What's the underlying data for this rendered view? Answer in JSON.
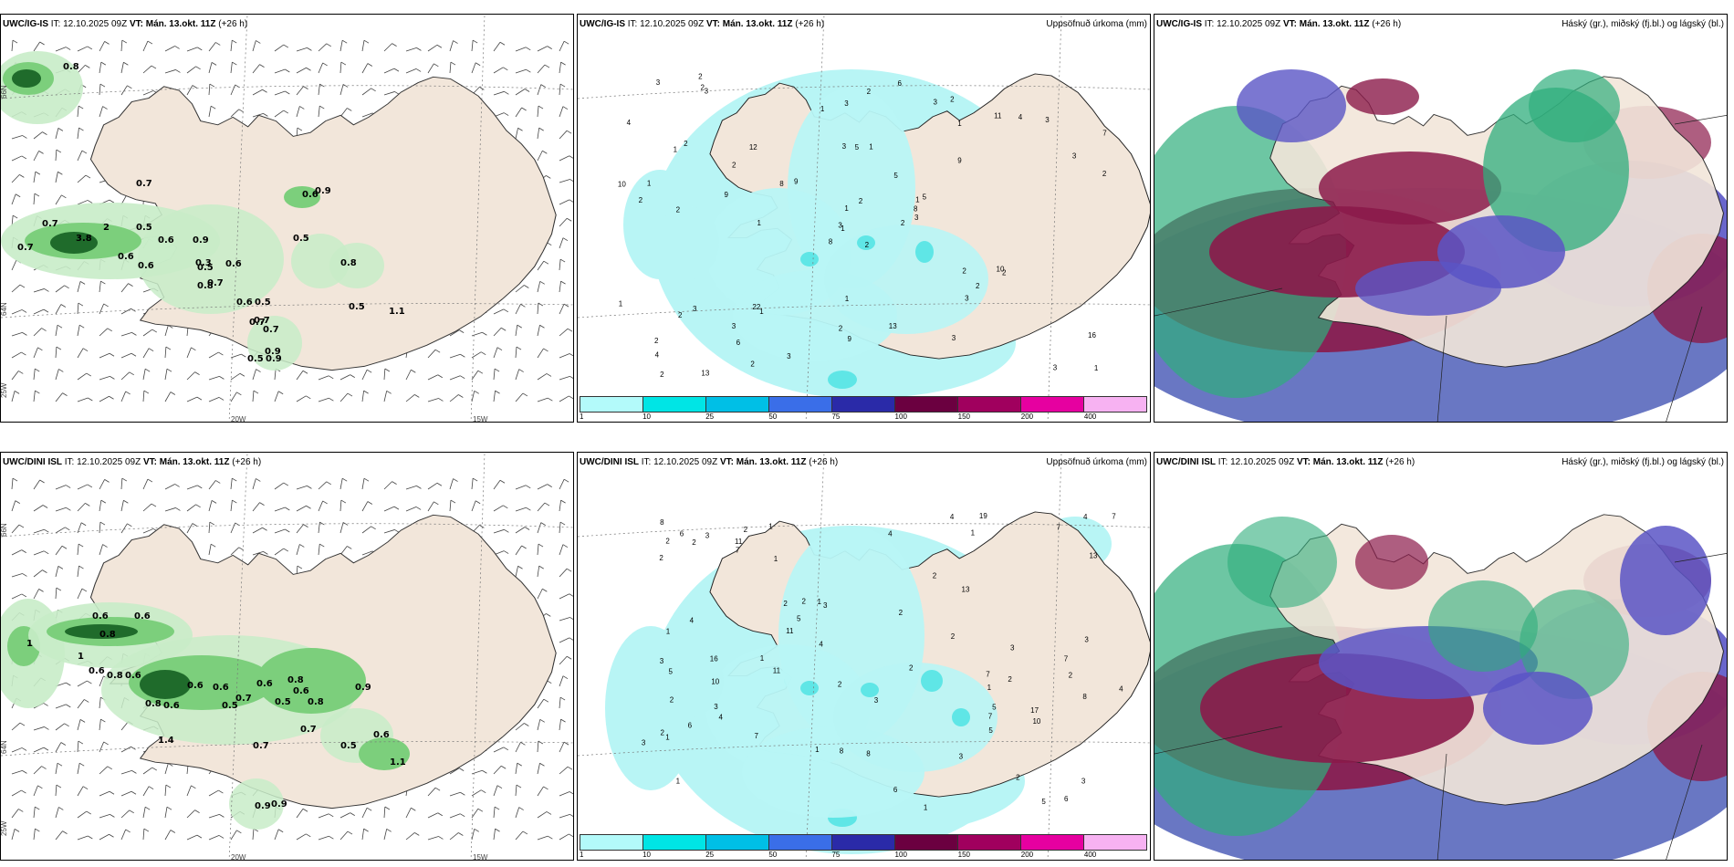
{
  "panels": [
    {
      "model": "UWC/IG-IS",
      "it_label": "IT:",
      "it_value": "12.10.2025 09Z",
      "vt_label": "VT:",
      "vt_value": "Mán. 13.okt. 11Z",
      "lead": "(+26 h)",
      "right_title": ""
    },
    {
      "model": "UWC/IG-IS",
      "it_label": "IT:",
      "it_value": "12.10.2025 09Z",
      "vt_label": "VT:",
      "vt_value": "Mán. 13.okt. 11Z",
      "lead": "(+26 h)",
      "right_title": "Uppsöfnuð úrkoma (mm)"
    },
    {
      "model": "UWC/IG-IS",
      "it_label": "IT:",
      "it_value": "12.10.2025 09Z",
      "vt_label": "VT:",
      "vt_value": "Mán. 13.okt. 11Z",
      "lead": "(+26 h)",
      "right_title": "Háský (gr.), miðský (fj.bl.) og lágský (bl.)"
    },
    {
      "model": "UWC/DINI ISL",
      "it_label": "IT:",
      "it_value": "12.10.2025 09Z",
      "vt_label": "VT:",
      "vt_value": "Mán. 13.okt. 11Z",
      "lead": "(+26 h)",
      "right_title": ""
    },
    {
      "model": "UWC/DINI ISL",
      "it_label": "IT:",
      "it_value": "12.10.2025 09Z",
      "vt_label": "VT:",
      "vt_value": "Mán. 13.okt. 11Z",
      "lead": "(+26 h)",
      "right_title": "Uppsöfnuð úrkoma (mm)"
    },
    {
      "model": "UWC/DINI ISL",
      "it_label": "IT:",
      "it_value": "12.10.2025 09Z",
      "vt_label": "VT:",
      "vt_value": "Mán. 13.okt. 11Z",
      "lead": "(+26 h)",
      "right_title": "Háský (gr.), miðský (fj.bl.) og lágský (bl.)"
    }
  ],
  "axis_labels": {
    "lat_66": "66N",
    "lat_64": "64N",
    "lon_25": "25W",
    "lon_20": "20W",
    "lon_15": "15W"
  },
  "colorbar": {
    "colors": [
      "#b3fafa",
      "#00e5e5",
      "#00bfe6",
      "#3a6ee8",
      "#2a2aa8",
      "#6b0040",
      "#a0005e",
      "#e600a0",
      "#f7b2f2"
    ],
    "ticks": [
      "1",
      "10",
      "25",
      "50",
      "75",
      "100",
      "150",
      "200",
      "400"
    ]
  },
  "colors": {
    "land": "#f2e6da",
    "precip_light": "#b8f5f5",
    "precip_mid": "#5fe6e6",
    "green_light": "#c8ecc8",
    "green_mid": "#7ccf7c",
    "green_dark": "#1f6b2b",
    "cloud_high": "#2fae7c",
    "cloud_mid": "#8b1a4a",
    "cloud_low": "#5a55c6",
    "ocean_cloud": "#4f5fb8"
  },
  "labels": {
    "windmax_top": [
      "0.8",
      "0.7",
      "0.7",
      "0.7",
      "3.8",
      "2",
      "0.5",
      "0.6",
      "0.9",
      "0.8",
      "0.6",
      "0.6",
      "0.5",
      "0.3",
      "0.6",
      "0.7",
      "0.5",
      "0.5",
      "0.6",
      "0.9",
      "0.8",
      "0.5",
      "0.6",
      "0.7",
      "0.5",
      "0.9",
      "0.9",
      "0.7",
      "0.7",
      "1.1"
    ],
    "windmax_bottom": [
      "1",
      "0.6",
      "0.8",
      "0.6",
      "1",
      "0.6",
      "0.8",
      "0.6",
      "0.8",
      "0.6",
      "0.6",
      "0.6",
      "0.5",
      "0.7",
      "0.6",
      "0.8",
      "0.8",
      "0.9",
      "0.6",
      "0.5",
      "0.7",
      "0.5",
      "0.6",
      "0.7",
      "0.9",
      "0.9",
      "1.1",
      "1.4"
    ],
    "precip_top": [
      "2",
      "1",
      "1",
      "2",
      "1",
      "1",
      "2",
      "1",
      "1",
      "2",
      "3",
      "1",
      "2",
      "7",
      "8",
      "9",
      "13",
      "3",
      "5",
      "3",
      "9",
      "4",
      "6",
      "5",
      "5",
      "2",
      "2",
      "3",
      "2",
      "2",
      "2",
      "3",
      "2",
      "1",
      "12",
      "11",
      "22",
      "3",
      "16",
      "10",
      "6",
      "8",
      "9",
      "3",
      "2",
      "10",
      "8",
      "2",
      "9",
      "3",
      "2",
      "3",
      "4",
      "2",
      "3",
      "3",
      "2",
      "3",
      "13",
      "3",
      "2",
      "1",
      "1",
      "2",
      "4",
      "2",
      "3",
      "1",
      "2",
      "1",
      "1",
      "3"
    ],
    "precip_bottom": [
      "1",
      "2",
      "1",
      "2",
      "3",
      "2",
      "1",
      "1",
      "2",
      "1",
      "2",
      "3",
      "2",
      "3",
      "1",
      "3",
      "3",
      "2",
      "1",
      "4",
      "7",
      "7",
      "11",
      "8",
      "4",
      "11",
      "5",
      "5",
      "7",
      "3",
      "6",
      "3",
      "5",
      "11",
      "7",
      "10",
      "7",
      "16",
      "8",
      "6",
      "13",
      "19",
      "6",
      "8",
      "17",
      "7",
      "3",
      "6",
      "2",
      "1",
      "4",
      "2",
      "4",
      "7",
      "5",
      "5",
      "13",
      "8",
      "10",
      "3",
      "2",
      "1",
      "2",
      "2",
      "4",
      "4",
      "2",
      "3",
      "1",
      "2",
      "2",
      "1",
      "4",
      "2"
    ]
  }
}
